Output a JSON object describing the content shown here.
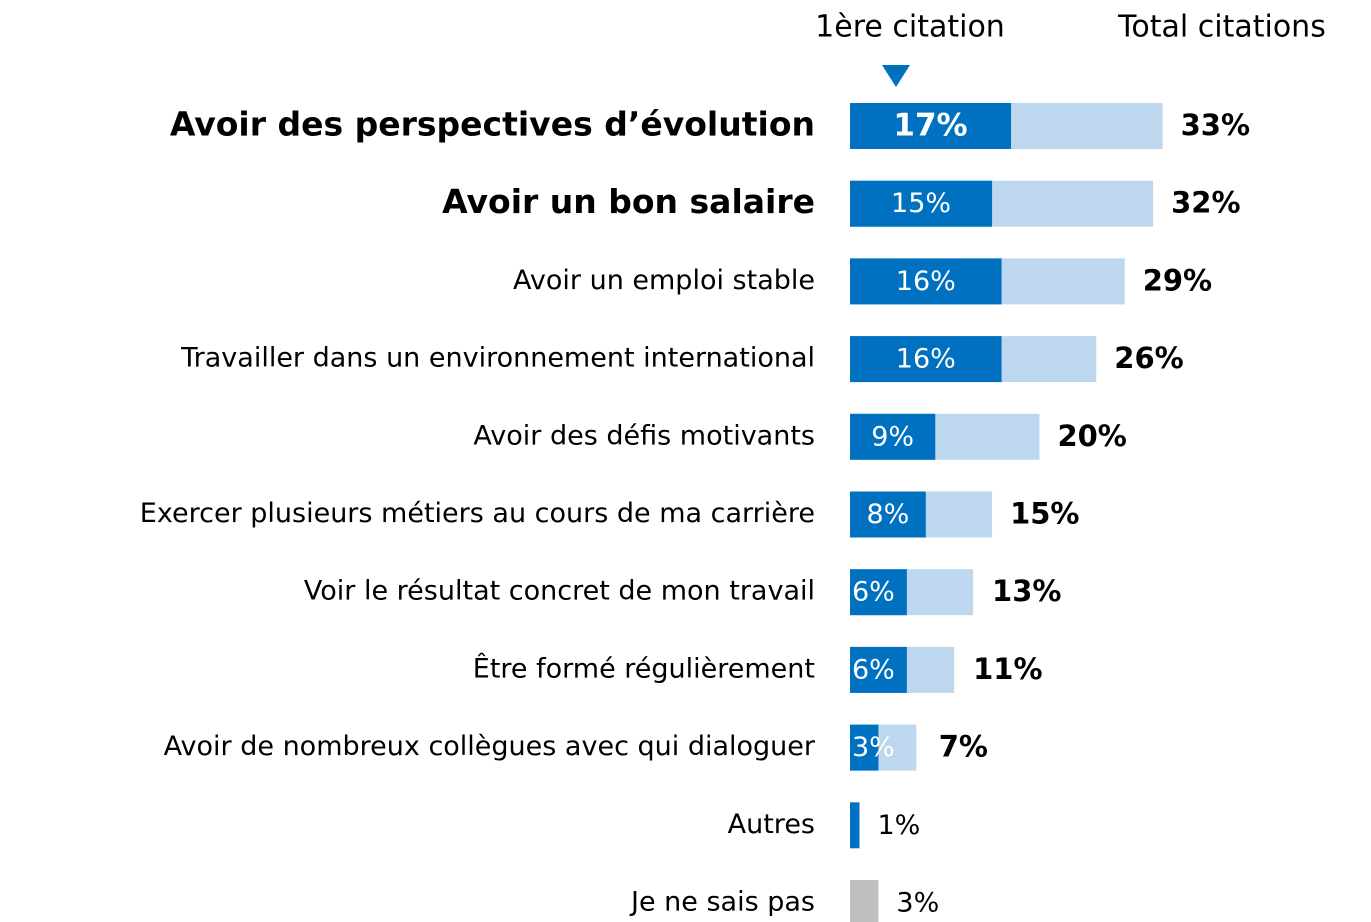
{
  "chart_data": {
    "type": "bar",
    "orientation": "horizontal",
    "overlay": true,
    "categories": [
      "Avoir des perspectives d’évolution",
      "Avoir un bon salaire",
      "Avoir un emploi stable",
      "Travailler dans un environnement international",
      "Avoir des défis motivants",
      "Exercer plusieurs métiers au cours de ma carrière",
      "Voir le résultat concret de mon travail",
      "Être formé régulièrement",
      "Avoir de nombreux collègues avec qui dialoguer",
      "Autres",
      "Je ne sais pas"
    ],
    "highlight_categories": [
      0,
      1
    ],
    "series": [
      {
        "name": "1ère citation",
        "color": "#0070c0",
        "colors": [
          "#0070c0",
          "#0070c0",
          "#0070c0",
          "#0070c0",
          "#0070c0",
          "#0070c0",
          "#0070c0",
          "#0070c0",
          "#0070c0",
          "#0070c0",
          "#bfbfbf"
        ],
        "values": [
          17,
          15,
          16,
          16,
          9,
          8,
          6,
          6,
          3,
          1,
          3
        ],
        "value_labels": [
          "17%",
          "15%",
          "16%",
          "16%",
          "9%",
          "8%",
          "6%",
          "6%",
          "3%",
          "1%",
          "3%"
        ]
      },
      {
        "name": "Total citations",
        "color": "#bdd7ee",
        "values": [
          33,
          32,
          29,
          26,
          20,
          15,
          13,
          11,
          7,
          null,
          null
        ],
        "value_labels": [
          "33%",
          "32%",
          "29%",
          "26%",
          "20%",
          "15%",
          "13%",
          "11%",
          "7%",
          null,
          null
        ]
      }
    ],
    "xlim": [
      0,
      55
    ]
  }
}
